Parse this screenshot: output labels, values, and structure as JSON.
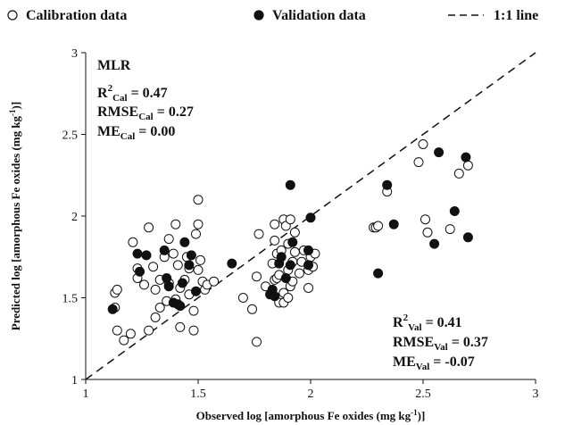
{
  "chart_data": {
    "type": "scatter",
    "title": "",
    "xlabel": "Observed log [amorphous Fe oxides (mg kg-1)]",
    "ylabel": "Predicted log [amorphous Fe oxides (mg kg-1)]",
    "xlim": [
      1,
      3
    ],
    "ylim": [
      1,
      3
    ],
    "xticks": [
      "1",
      "1.5",
      "2",
      "2.5",
      "3"
    ],
    "yticks": [
      "1",
      "1.5",
      "2",
      "2.5",
      "3"
    ],
    "grid": false,
    "legend_position": "top",
    "legend": [
      {
        "label": "Calibration data",
        "marker": "open-circle"
      },
      {
        "label": "Validation data",
        "marker": "filled-circle"
      },
      {
        "label": "1:1 line",
        "marker": "dashed-line"
      }
    ],
    "reference_line": {
      "name": "1:1 line",
      "from": [
        1,
        1
      ],
      "to": [
        3,
        3
      ]
    },
    "series": [
      {
        "name": "Calibration data",
        "marker": "open-circle",
        "points": [
          [
            1.13,
            1.53
          ],
          [
            1.14,
            1.55
          ],
          [
            1.13,
            1.44
          ],
          [
            1.14,
            1.3
          ],
          [
            1.17,
            1.24
          ],
          [
            1.2,
            1.28
          ],
          [
            1.21,
            1.84
          ],
          [
            1.23,
            1.62
          ],
          [
            1.23,
            1.68
          ],
          [
            1.26,
            1.58
          ],
          [
            1.28,
            1.3
          ],
          [
            1.28,
            1.93
          ],
          [
            1.3,
            1.69
          ],
          [
            1.31,
            1.38
          ],
          [
            1.33,
            1.44
          ],
          [
            1.31,
            1.55
          ],
          [
            1.33,
            1.61
          ],
          [
            1.35,
            1.75
          ],
          [
            1.36,
            1.48
          ],
          [
            1.37,
            1.59
          ],
          [
            1.37,
            1.86
          ],
          [
            1.39,
            1.77
          ],
          [
            1.41,
            1.7
          ],
          [
            1.42,
            1.56
          ],
          [
            1.4,
            1.49
          ],
          [
            1.44,
            1.61
          ],
          [
            1.45,
            1.75
          ],
          [
            1.46,
            1.68
          ],
          [
            1.46,
            1.52
          ],
          [
            1.48,
            1.3
          ],
          [
            1.48,
            1.42
          ],
          [
            1.49,
            1.89
          ],
          [
            1.5,
            1.67
          ],
          [
            1.51,
            1.73
          ],
          [
            1.5,
            1.95
          ],
          [
            1.5,
            2.1
          ],
          [
            1.52,
            1.6
          ],
          [
            1.53,
            1.55
          ],
          [
            1.54,
            1.58
          ],
          [
            1.57,
            1.6
          ],
          [
            1.4,
            1.95
          ],
          [
            1.42,
            1.32
          ],
          [
            1.7,
            1.5
          ],
          [
            1.74,
            1.43
          ],
          [
            1.76,
            1.63
          ],
          [
            1.77,
            1.89
          ],
          [
            1.76,
            1.23
          ],
          [
            1.8,
            1.57
          ],
          [
            1.83,
            1.71
          ],
          [
            1.84,
            1.61
          ],
          [
            1.84,
            1.85
          ],
          [
            1.85,
            1.77
          ],
          [
            1.85,
            1.62
          ],
          [
            1.86,
            1.64
          ],
          [
            1.86,
            1.47
          ],
          [
            1.87,
            1.79
          ],
          [
            1.88,
            1.53
          ],
          [
            1.88,
            1.98
          ],
          [
            1.89,
            1.94
          ],
          [
            1.9,
            1.83
          ],
          [
            1.9,
            1.67
          ],
          [
            1.91,
            1.57
          ],
          [
            1.91,
            1.98
          ],
          [
            1.92,
            1.72
          ],
          [
            1.92,
            1.6
          ],
          [
            1.93,
            1.78
          ],
          [
            1.93,
            1.9
          ],
          [
            1.95,
            1.65
          ],
          [
            1.96,
            1.72
          ],
          [
            1.97,
            1.79
          ],
          [
            1.99,
            1.56
          ],
          [
            1.99,
            1.67
          ],
          [
            2.0,
            1.75
          ],
          [
            2.01,
            1.69
          ],
          [
            2.02,
            1.77
          ],
          [
            1.88,
            1.47
          ],
          [
            1.9,
            1.5
          ],
          [
            1.84,
            1.95
          ],
          [
            2.28,
            1.93
          ],
          [
            2.29,
            1.93
          ],
          [
            2.3,
            1.94
          ],
          [
            2.34,
            2.15
          ],
          [
            2.48,
            2.33
          ],
          [
            2.5,
            2.44
          ],
          [
            2.51,
            1.98
          ],
          [
            2.52,
            1.9
          ],
          [
            2.62,
            1.92
          ],
          [
            2.66,
            2.26
          ],
          [
            2.7,
            2.31
          ]
        ]
      },
      {
        "name": "Validation data",
        "marker": "filled-circle",
        "points": [
          [
            1.12,
            1.43
          ],
          [
            1.23,
            1.77
          ],
          [
            1.24,
            1.66
          ],
          [
            1.27,
            1.76
          ],
          [
            1.35,
            1.79
          ],
          [
            1.36,
            1.62
          ],
          [
            1.37,
            1.57
          ],
          [
            1.39,
            1.47
          ],
          [
            1.41,
            1.46
          ],
          [
            1.42,
            1.45
          ],
          [
            1.43,
            1.59
          ],
          [
            1.44,
            1.84
          ],
          [
            1.46,
            1.7
          ],
          [
            1.47,
            1.76
          ],
          [
            1.49,
            1.54
          ],
          [
            1.65,
            1.71
          ],
          [
            1.82,
            1.52
          ],
          [
            1.83,
            1.55
          ],
          [
            1.84,
            1.51
          ],
          [
            1.86,
            1.71
          ],
          [
            1.87,
            1.75
          ],
          [
            1.89,
            1.62
          ],
          [
            1.91,
            1.7
          ],
          [
            1.91,
            2.19
          ],
          [
            1.92,
            1.84
          ],
          [
            1.99,
            1.79
          ],
          [
            1.99,
            1.7
          ],
          [
            2.0,
            1.99
          ],
          [
            2.3,
            1.65
          ],
          [
            2.34,
            2.19
          ],
          [
            2.37,
            1.95
          ],
          [
            2.55,
            1.83
          ],
          [
            2.57,
            2.39
          ],
          [
            2.64,
            2.03
          ],
          [
            2.69,
            2.36
          ],
          [
            2.7,
            1.87
          ]
        ]
      }
    ],
    "annotations": {
      "model": "MLR",
      "calibration": [
        {
          "metric": "R",
          "sup": "2",
          "sub": "Cal",
          "value": " = 0.47"
        },
        {
          "metric": "RMSE",
          "sup": "",
          "sub": "Cal",
          "value": " = 0.27"
        },
        {
          "metric": "ME",
          "sup": "",
          "sub": "Cal",
          "value": " = 0.00"
        }
      ],
      "validation": [
        {
          "metric": "R",
          "sup": "2",
          "sub": "Val",
          "value": " = 0.41"
        },
        {
          "metric": "RMSE",
          "sup": "",
          "sub": "Val",
          "value": " = 0.37"
        },
        {
          "metric": "ME",
          "sup": "",
          "sub": "Val",
          "value": " = -0.07"
        }
      ]
    },
    "axis_label_parts": {
      "x_main": "Observed log [amorphous Fe oxides (mg kg",
      "x_sup": "-1",
      "x_end": ")]",
      "y_main": "Predicted log [amorphous Fe oxides (mg kg",
      "y_sup": "-1",
      "y_end": ")]"
    }
  }
}
